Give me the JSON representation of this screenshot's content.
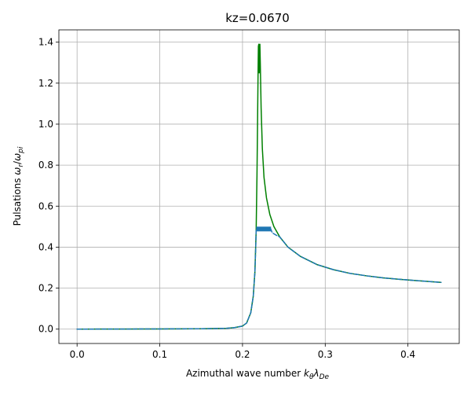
{
  "chart_data": {
    "type": "line",
    "title": "kz=0.0670",
    "xlabel": {
      "main": "Azimuthal wave number ",
      "var": "k",
      "sub1": "θ",
      "var2": "λ",
      "sub2": "De"
    },
    "ylabel": {
      "main": "Pulsations ",
      "var": "ω",
      "sub1": "r",
      "sep": "/",
      "var2": "ω",
      "sub2": "pi"
    },
    "xlim": [
      -0.022,
      0.462
    ],
    "ylim": [
      -0.07,
      1.46
    ],
    "grid": true,
    "x_ticks": [
      0.0,
      0.1,
      0.2,
      0.3,
      0.4
    ],
    "x_tick_labels": [
      "0.0",
      "0.1",
      "0.2",
      "0.3",
      "0.4"
    ],
    "y_ticks": [
      0.0,
      0.2,
      0.4,
      0.6,
      0.8,
      1.0,
      1.2,
      1.4
    ],
    "y_tick_labels": [
      "0.0",
      "0.2",
      "0.4",
      "0.6",
      "0.8",
      "1.0",
      "1.2",
      "1.4"
    ],
    "series": [
      {
        "color": "#008000",
        "style": "solid",
        "width": 1.5,
        "points": [
          [
            0.0,
            0.0
          ],
          [
            0.05,
            0.0005
          ],
          [
            0.1,
            0.001
          ],
          [
            0.15,
            0.002
          ],
          [
            0.18,
            0.004
          ],
          [
            0.19,
            0.007
          ],
          [
            0.2,
            0.015
          ],
          [
            0.205,
            0.03
          ],
          [
            0.21,
            0.08
          ],
          [
            0.213,
            0.16
          ],
          [
            0.215,
            0.28
          ],
          [
            0.2165,
            0.48
          ],
          [
            0.2175,
            0.75
          ],
          [
            0.2183,
            1.05
          ],
          [
            0.2188,
            1.25
          ],
          [
            0.2192,
            1.38
          ],
          [
            0.2197,
            1.39
          ],
          [
            0.2202,
            1.25
          ],
          [
            0.2206,
            1.37
          ],
          [
            0.221,
            1.39
          ],
          [
            0.2215,
            1.3
          ],
          [
            0.2225,
            1.08
          ],
          [
            0.224,
            0.88
          ],
          [
            0.226,
            0.74
          ],
          [
            0.229,
            0.64
          ],
          [
            0.233,
            0.56
          ],
          [
            0.238,
            0.5
          ],
          [
            0.245,
            0.45
          ],
          [
            0.255,
            0.4
          ],
          [
            0.27,
            0.355
          ],
          [
            0.29,
            0.315
          ],
          [
            0.31,
            0.29
          ],
          [
            0.33,
            0.272
          ],
          [
            0.35,
            0.26
          ],
          [
            0.37,
            0.25
          ],
          [
            0.39,
            0.243
          ],
          [
            0.41,
            0.237
          ],
          [
            0.43,
            0.231
          ],
          [
            0.44,
            0.228
          ]
        ]
      },
      {
        "color": "#1f77b4",
        "style": "dashed",
        "width": 1.5,
        "points": [
          [
            0.0,
            0.0
          ],
          [
            0.05,
            0.0005
          ],
          [
            0.1,
            0.001
          ],
          [
            0.15,
            0.002
          ],
          [
            0.18,
            0.004
          ],
          [
            0.19,
            0.007
          ],
          [
            0.2,
            0.015
          ],
          [
            0.205,
            0.03
          ],
          [
            0.21,
            0.08
          ],
          [
            0.213,
            0.16
          ],
          [
            0.215,
            0.28
          ],
          [
            0.216,
            0.4
          ],
          [
            0.2165,
            0.48
          ],
          [
            0.2175,
            0.49
          ],
          [
            0.22,
            0.49
          ],
          [
            0.225,
            0.49
          ],
          [
            0.23,
            0.49
          ],
          [
            0.234,
            0.49
          ],
          [
            0.236,
            0.47
          ],
          [
            0.24,
            0.46
          ],
          [
            0.245,
            0.45
          ],
          [
            0.255,
            0.4
          ],
          [
            0.27,
            0.355
          ],
          [
            0.29,
            0.315
          ],
          [
            0.31,
            0.29
          ],
          [
            0.33,
            0.272
          ],
          [
            0.35,
            0.26
          ],
          [
            0.37,
            0.25
          ],
          [
            0.39,
            0.243
          ],
          [
            0.41,
            0.237
          ],
          [
            0.43,
            0.231
          ],
          [
            0.44,
            0.228
          ]
        ]
      }
    ],
    "band": {
      "color": "#1f77b4",
      "x0": 0.2165,
      "x1": 0.2345,
      "y0": 0.477,
      "y1": 0.5
    }
  }
}
